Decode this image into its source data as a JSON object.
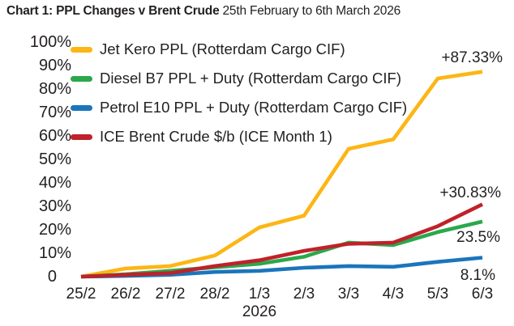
{
  "title": {
    "bold": "Chart 1: PPL Changes v Brent Crude",
    "regular": "25th February to 6th March 2026"
  },
  "chart_data": {
    "type": "line",
    "title": "Chart 1: PPL Changes v Brent Crude 25th February to 6th March 2026",
    "x": [
      "25/2",
      "26/2",
      "27/2",
      "28/2",
      "1/3",
      "2/3",
      "3/3",
      "4/3",
      "5/3",
      "6/3"
    ],
    "x_axis_year": "2026",
    "ylim": [
      0,
      100
    ],
    "y_ticks": [
      "100%",
      "90%",
      "80%",
      "70%",
      "60%",
      "50%",
      "40%",
      "30%",
      "20%",
      "10%",
      "0"
    ],
    "y_tick_values": [
      100,
      90,
      80,
      70,
      60,
      50,
      40,
      30,
      20,
      10,
      0
    ],
    "grid": false,
    "legend_position": "inside-top-left",
    "text_color": "#231f20",
    "series": [
      {
        "name": "Jet Kero PPL (Rotterdam Cargo CIF)",
        "color": "#FCB615",
        "values": [
          0,
          3.5,
          4.5,
          9,
          21,
          26,
          54.5,
          58.5,
          84.5,
          87.33
        ],
        "end_label": "+87.33%"
      },
      {
        "name": "Diesel B7 PPL + Duty (Rotterdam Cargo CIF)",
        "color": "#2BA84C",
        "values": [
          0,
          1,
          2.5,
          4,
          5.5,
          8.5,
          14.5,
          13.5,
          19,
          23.5
        ],
        "end_label": "23.5%"
      },
      {
        "name": "Petrol E10 PPL + Duty (Rotterdam Cargo CIF)",
        "color": "#1B75BB",
        "values": [
          0,
          0.3,
          0.8,
          2,
          2.5,
          3.8,
          4.5,
          4.2,
          6.3,
          8.1
        ],
        "end_label": "8.1%"
      },
      {
        "name": "ICE Brent Crude $/b (ICE Month 1)",
        "color": "#C0212A",
        "values": [
          0,
          0.8,
          1.5,
          4.5,
          7,
          11,
          14,
          14.5,
          21.5,
          30.83
        ],
        "end_label": "+30.83%"
      }
    ]
  }
}
